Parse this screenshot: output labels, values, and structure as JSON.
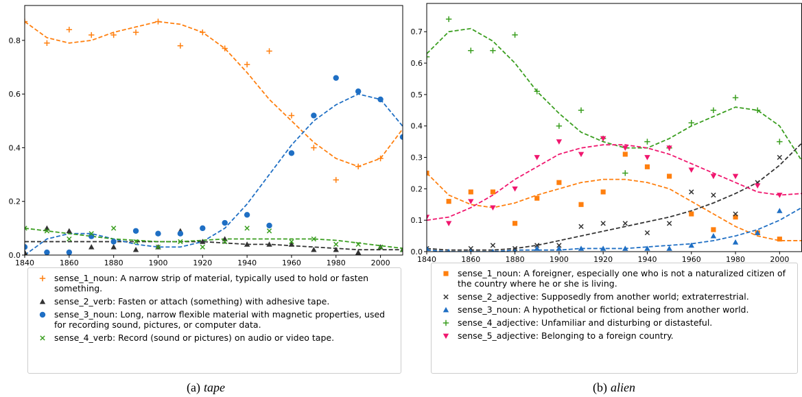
{
  "chart_data": [
    {
      "type": "scatter",
      "caption_label": "(a)",
      "caption_word": "tape",
      "x": [
        1840,
        1850,
        1860,
        1870,
        1880,
        1890,
        1900,
        1910,
        1920,
        1930,
        1940,
        1950,
        1960,
        1970,
        1980,
        1990,
        2000,
        2010
      ],
      "xlim": [
        1840,
        2010
      ],
      "xticks": [
        1840,
        1860,
        1880,
        1900,
        1920,
        1940,
        1960,
        1980,
        2000
      ],
      "ylim": [
        0,
        0.93
      ],
      "yticks": [
        {
          "value": 0,
          "label": "0.0"
        },
        0.2,
        0.4,
        0.6,
        0.8
      ],
      "series": [
        {
          "name": "sense_1_noun: A narrow strip of material, typically used to hold or fasten something.",
          "color": "#ff7f0e",
          "marker": "plus",
          "values": [
            0.87,
            0.79,
            0.84,
            0.82,
            0.82,
            0.83,
            0.87,
            0.78,
            0.83,
            0.77,
            0.71,
            0.76,
            0.52,
            0.4,
            0.28,
            0.33,
            0.36,
            0.44
          ],
          "fit": [
            0.87,
            0.81,
            0.79,
            0.8,
            0.83,
            0.85,
            0.87,
            0.86,
            0.83,
            0.77,
            0.68,
            0.58,
            0.5,
            0.42,
            0.36,
            0.33,
            0.36,
            0.47
          ]
        },
        {
          "name": "sense_2_verb: Fasten or attach (something) with adhesive tape.",
          "color": "#333333",
          "marker": "triangle-up",
          "values": [
            0.01,
            0.1,
            0.09,
            0.03,
            0.03,
            0.02,
            0.03,
            0.09,
            0.05,
            0.06,
            0.04,
            0.04,
            0.04,
            0.02,
            0.02,
            0.01,
            0.03,
            0.02
          ],
          "fit": [
            0.05,
            0.05,
            0.05,
            0.05,
            0.05,
            0.05,
            0.05,
            0.05,
            0.05,
            0.045,
            0.04,
            0.04,
            0.035,
            0.03,
            0.025,
            0.02,
            0.02,
            0.02
          ]
        },
        {
          "name": "sense_3_noun: Long, narrow flexible material with magnetic properties, used for recording sound, pictures, or computer data.",
          "color": "#1f6fc4",
          "marker": "circle",
          "values": [
            0.03,
            0.01,
            0.01,
            0.07,
            0.05,
            0.09,
            0.08,
            0.08,
            0.1,
            0.12,
            0.15,
            0.11,
            0.38,
            0.52,
            0.66,
            0.61,
            0.58,
            0.44
          ],
          "fit": [
            0.0,
            0.06,
            0.08,
            0.08,
            0.06,
            0.04,
            0.03,
            0.03,
            0.05,
            0.1,
            0.19,
            0.3,
            0.41,
            0.5,
            0.56,
            0.6,
            0.58,
            0.48
          ]
        },
        {
          "name": "sense_4_verb: Record (sound or pictures) on audio or video tape.",
          "color": "#3a9e1f",
          "marker": "cross",
          "values": [
            0.1,
            0.09,
            0.06,
            0.08,
            0.1,
            0.05,
            0.03,
            0.05,
            0.03,
            0.05,
            0.1,
            0.09,
            0.05,
            0.06,
            0.04,
            0.04,
            0.03,
            0.02
          ],
          "fit": [
            0.1,
            0.09,
            0.08,
            0.07,
            0.06,
            0.055,
            0.05,
            0.05,
            0.055,
            0.06,
            0.06,
            0.06,
            0.06,
            0.06,
            0.055,
            0.045,
            0.035,
            0.025
          ]
        }
      ]
    },
    {
      "type": "scatter",
      "caption_label": "(b)",
      "caption_word": "alien",
      "x": [
        1840,
        1850,
        1860,
        1870,
        1880,
        1890,
        1900,
        1910,
        1920,
        1930,
        1940,
        1950,
        1960,
        1970,
        1980,
        1990,
        2000,
        2010
      ],
      "xlim": [
        1840,
        2010
      ],
      "xticks": [
        1840,
        1860,
        1880,
        1900,
        1920,
        1940,
        1960,
        1980,
        2000
      ],
      "ylim": [
        0,
        0.79
      ],
      "yticks": [
        {
          "value": 0,
          "label": "0.0"
        },
        0.1,
        0.2,
        0.3,
        0.4,
        0.5,
        0.6,
        0.7
      ],
      "series": [
        {
          "name": "sense_1_noun: A foreigner, especially one who is not a naturalized citizen of the country where he or she is living.",
          "color": "#ff7f0e",
          "marker": "square",
          "values": [
            0.25,
            0.16,
            0.19,
            0.19,
            0.09,
            0.17,
            0.22,
            0.15,
            0.19,
            0.31,
            0.27,
            0.24,
            0.12,
            0.07,
            0.11,
            0.06,
            0.04,
            null
          ],
          "fit": [
            0.25,
            0.18,
            0.15,
            0.14,
            0.155,
            0.18,
            0.2,
            0.22,
            0.23,
            0.23,
            0.22,
            0.2,
            0.16,
            0.12,
            0.08,
            0.05,
            0.035,
            0.035
          ]
        },
        {
          "name": "sense_2_adjective: Supposedly from another world; extraterrestrial.",
          "color": "#333333",
          "marker": "cross",
          "values": [
            0.01,
            null,
            0.01,
            0.02,
            0.01,
            0.02,
            0.02,
            0.08,
            0.09,
            0.09,
            0.06,
            0.09,
            0.19,
            0.18,
            0.12,
            0.22,
            0.3,
            null
          ],
          "fit": [
            0.01,
            0.005,
            0.005,
            0.005,
            0.01,
            0.02,
            0.035,
            0.05,
            0.065,
            0.08,
            0.095,
            0.11,
            0.13,
            0.155,
            0.185,
            0.22,
            0.275,
            0.345
          ]
        },
        {
          "name": "sense_3_noun: A hypothetical or fictional being from another world.",
          "color": "#1f6fc4",
          "marker": "triangle-up",
          "values": [
            0.01,
            0.0,
            0.0,
            0.0,
            0.0,
            0.01,
            0.01,
            0.01,
            0.01,
            0.01,
            0.01,
            0.01,
            0.02,
            0.05,
            0.03,
            0.06,
            0.13,
            null
          ],
          "fit": [
            0.005,
            0.0,
            0.0,
            0.0,
            0.005,
            0.005,
            0.005,
            0.01,
            0.01,
            0.01,
            0.015,
            0.02,
            0.025,
            0.035,
            0.05,
            0.07,
            0.1,
            0.14
          ]
        },
        {
          "name": "sense_4_adjective: Unfamiliar and disturbing or distasteful.",
          "color": "#3a9e1f",
          "marker": "plus",
          "values": [
            0.62,
            0.74,
            0.64,
            0.64,
            0.69,
            0.51,
            0.4,
            0.45,
            0.36,
            0.25,
            0.35,
            0.33,
            0.41,
            0.45,
            0.49,
            0.45,
            0.35,
            null
          ],
          "fit": [
            0.63,
            0.7,
            0.71,
            0.67,
            0.6,
            0.51,
            0.44,
            0.38,
            0.35,
            0.33,
            0.33,
            0.36,
            0.4,
            0.43,
            0.46,
            0.45,
            0.4,
            0.29
          ]
        },
        {
          "name": "sense_5_adjective: Belonging to a foreign country.",
          "color": "#f0166e",
          "marker": "triangle-down",
          "values": [
            0.11,
            0.09,
            0.16,
            0.14,
            0.2,
            0.3,
            0.35,
            0.31,
            0.36,
            0.33,
            0.3,
            0.33,
            0.26,
            0.24,
            0.24,
            0.21,
            0.18,
            null
          ],
          "fit": [
            0.1,
            0.11,
            0.14,
            0.18,
            0.23,
            0.27,
            0.31,
            0.33,
            0.34,
            0.34,
            0.33,
            0.31,
            0.28,
            0.25,
            0.22,
            0.19,
            0.18,
            0.185
          ]
        }
      ]
    }
  ]
}
